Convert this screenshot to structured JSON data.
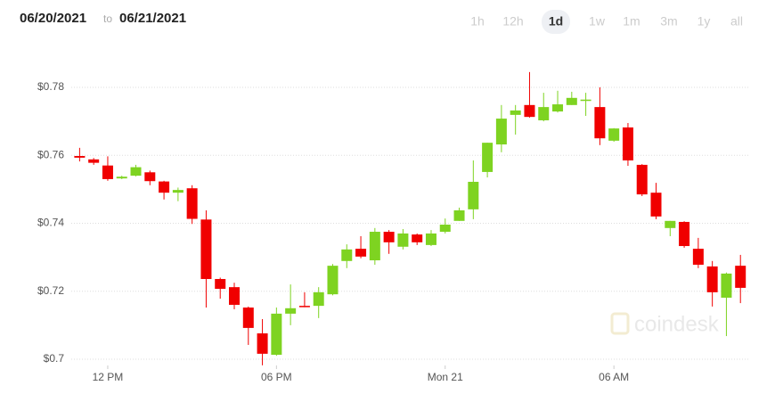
{
  "header": {
    "from": "06/20/2021",
    "to_word": "to",
    "to": "06/21/2021",
    "ranges": [
      "1h",
      "12h",
      "1d",
      "1w",
      "1m",
      "3m",
      "1y",
      "all"
    ],
    "active_range": "1d"
  },
  "watermark": "coindesk",
  "chart_data": {
    "type": "candlestick",
    "grid": true,
    "up_color": "#7ed321",
    "down_color": "#f00000",
    "x": [
      11,
      11.5,
      12,
      12.5,
      13,
      13.5,
      14,
      14.5,
      15,
      15.5,
      16,
      16.5,
      17,
      17.5,
      18,
      18.5,
      19,
      19.5,
      20,
      20.5,
      21,
      21.5,
      22,
      22.5,
      23,
      23.5,
      24,
      24.5,
      25,
      25.5,
      26,
      26.5,
      27,
      27.5,
      28,
      28.5,
      29,
      29.5,
      30,
      30.5,
      31,
      31.5,
      32,
      32.5,
      33,
      33.5,
      34,
      34.5
    ],
    "xlim": [
      10.5,
      35
    ],
    "xticks": [
      {
        "value": 12,
        "label": "12 PM"
      },
      {
        "value": 18,
        "label": "06 PM"
      },
      {
        "value": 24,
        "label": "Mon 21"
      },
      {
        "value": 30,
        "label": "06 AM"
      }
    ],
    "ylim": [
      0.698,
      0.788
    ],
    "yticks": [
      {
        "value": 0.7,
        "label": "$0.7"
      },
      {
        "value": 0.72,
        "label": "$0.72"
      },
      {
        "value": 0.74,
        "label": "$0.74"
      },
      {
        "value": 0.76,
        "label": "$0.76"
      },
      {
        "value": 0.78,
        "label": "$0.78"
      }
    ],
    "open": [
      0.7598,
      0.7588,
      0.757,
      0.7532,
      0.754,
      0.755,
      0.7523,
      0.749,
      0.7503,
      0.7411,
      0.7236,
      0.7212,
      0.7152,
      0.7076,
      0.7013,
      0.7134,
      0.7157,
      0.7157,
      0.7191,
      0.7289,
      0.7325,
      0.7291,
      0.7375,
      0.7331,
      0.7367,
      0.7336,
      0.7375,
      0.7407,
      0.7441,
      0.7551,
      0.7632,
      0.7719,
      0.7748,
      0.7703,
      0.7729,
      0.7748,
      0.776,
      0.7742,
      0.7643,
      0.7682,
      0.7572,
      0.749,
      0.7386,
      0.7404,
      0.7325,
      0.7273,
      0.7181,
      0.7275
    ],
    "high": [
      0.7622,
      0.7592,
      0.7597,
      0.754,
      0.7572,
      0.7555,
      0.7525,
      0.7505,
      0.7512,
      0.7438,
      0.724,
      0.7225,
      0.7155,
      0.7118,
      0.7152,
      0.722,
      0.7197,
      0.7212,
      0.728,
      0.7338,
      0.7362,
      0.7386,
      0.738,
      0.7383,
      0.737,
      0.738,
      0.7414,
      0.7446,
      0.7585,
      0.7637,
      0.7748,
      0.7748,
      0.7845,
      0.7784,
      0.779,
      0.7787,
      0.7784,
      0.78,
      0.768,
      0.7695,
      0.7574,
      0.7519,
      0.7407,
      0.7406,
      0.7357,
      0.7289,
      0.7255,
      0.7307
    ],
    "low": [
      0.7582,
      0.7572,
      0.7525,
      0.753,
      0.7538,
      0.7512,
      0.747,
      0.7465,
      0.7398,
      0.7152,
      0.7178,
      0.7147,
      0.7042,
      0.6982,
      0.701,
      0.71,
      0.7153,
      0.7121,
      0.7188,
      0.7268,
      0.7297,
      0.7278,
      0.731,
      0.7323,
      0.7336,
      0.7333,
      0.737,
      0.7407,
      0.7412,
      0.7535,
      0.7609,
      0.7661,
      0.7711,
      0.77,
      0.7726,
      0.7748,
      0.7716,
      0.763,
      0.764,
      0.7569,
      0.748,
      0.7412,
      0.7362,
      0.7328,
      0.7268,
      0.7155,
      0.7068,
      0.7165
    ],
    "close": [
      0.7593,
      0.7578,
      0.753,
      0.7537,
      0.7565,
      0.7524,
      0.749,
      0.7498,
      0.7413,
      0.7236,
      0.7207,
      0.716,
      0.7092,
      0.7016,
      0.7134,
      0.715,
      0.7154,
      0.7197,
      0.7275,
      0.7323,
      0.7302,
      0.7375,
      0.7344,
      0.737,
      0.7344,
      0.737,
      0.7396,
      0.7438,
      0.7522,
      0.7637,
      0.7708,
      0.7732,
      0.7713,
      0.7742,
      0.775,
      0.7769,
      0.7764,
      0.765,
      0.7679,
      0.7585,
      0.7485,
      0.742,
      0.7407,
      0.7333,
      0.7278,
      0.7197,
      0.7252,
      0.721
    ]
  }
}
